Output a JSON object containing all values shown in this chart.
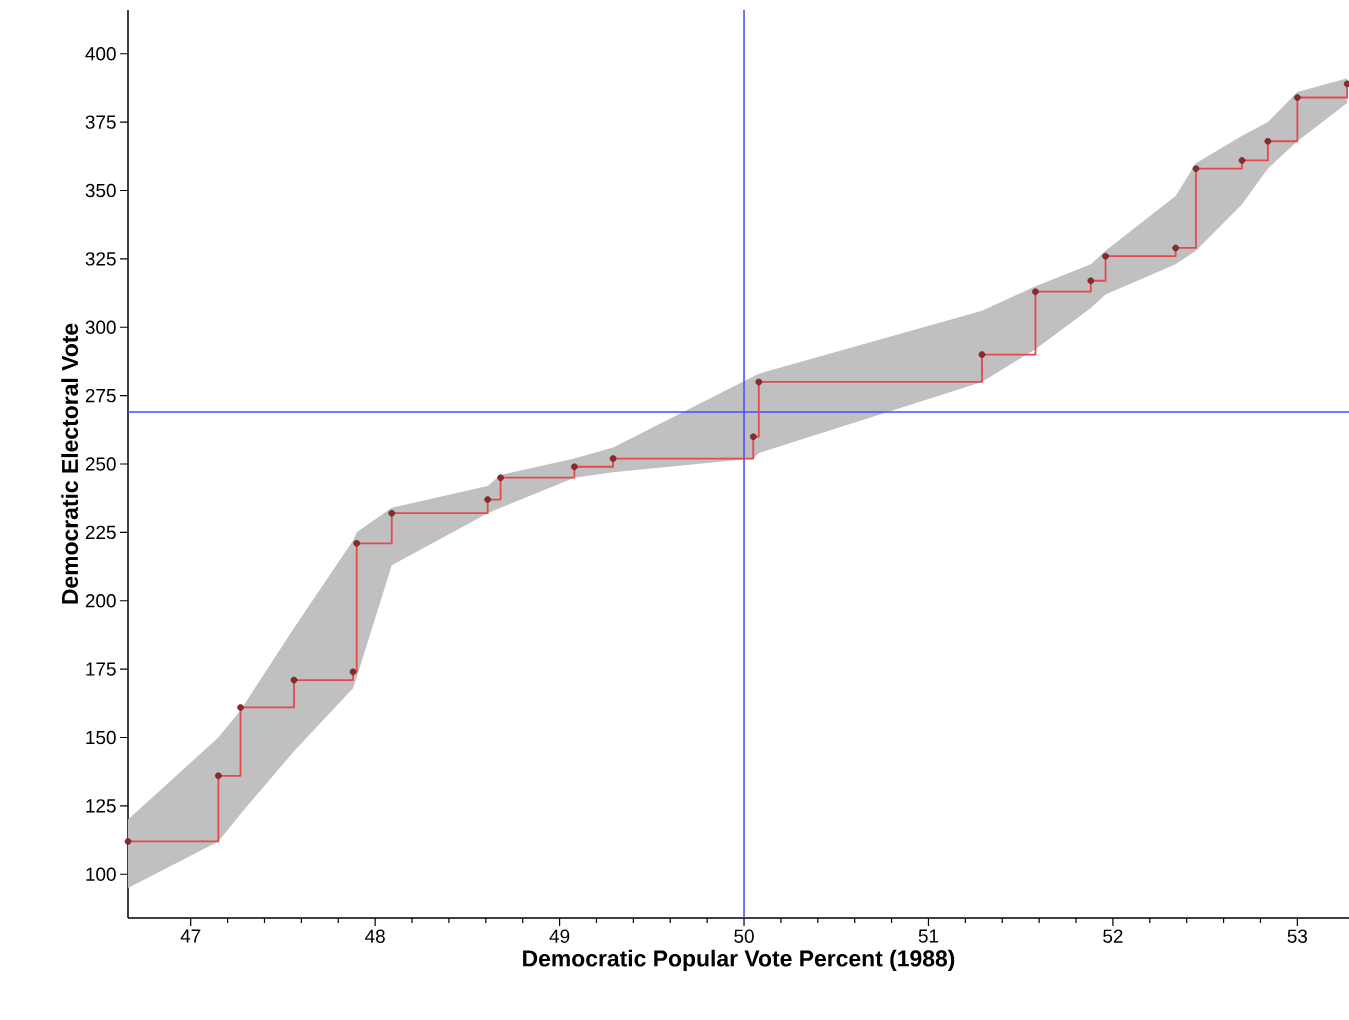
{
  "chart_data": {
    "type": "step",
    "xlabel": "Democratic Popular Vote Percent (1988)",
    "ylabel": "Democratic Electoral Vote",
    "xlim": [
      46.66,
      53.28
    ],
    "ylim": [
      84,
      416
    ],
    "xticks": [
      47,
      48,
      49,
      50,
      51,
      52,
      53
    ],
    "yticks": [
      100,
      125,
      150,
      175,
      200,
      225,
      250,
      275,
      300,
      325,
      350,
      375,
      400
    ],
    "grid": false,
    "marker": "circle",
    "line_style": "solid",
    "series": [
      {
        "color": "#e8474c",
        "x": [
          46.66,
          47.15,
          47.27,
          47.56,
          47.88,
          47.9,
          48.09,
          48.61,
          48.68,
          49.08,
          49.29,
          50.05,
          50.08,
          51.29,
          51.58,
          51.88,
          51.96,
          52.34,
          52.45,
          52.7,
          52.84,
          53.0,
          53.27
        ],
        "values": [
          112,
          136,
          161,
          171,
          174,
          221,
          232,
          237,
          245,
          249,
          252,
          260,
          280,
          290,
          313,
          317,
          326,
          329,
          358,
          361,
          368,
          384,
          389
        ],
        "lower": [
          95,
          112,
          122,
          145,
          168,
          172,
          213,
          232,
          234,
          245,
          247,
          252,
          254,
          280,
          292,
          307,
          312,
          323,
          328,
          345,
          358,
          368,
          382
        ],
        "upper": [
          120,
          150,
          160,
          190,
          222,
          225,
          234,
          242,
          246,
          252,
          256,
          282,
          283,
          306,
          315,
          323,
          328,
          348,
          360,
          370,
          375,
          386,
          391
        ]
      }
    ],
    "ref_lines": [
      {
        "axis": "x",
        "value": 50,
        "color": "#4d4dff"
      },
      {
        "axis": "y",
        "value": 269,
        "color": "#4d4dff"
      }
    ]
  }
}
